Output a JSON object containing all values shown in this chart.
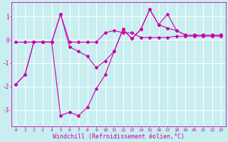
{
  "bg_color": "#c8eef0",
  "grid_color": "#ffffff",
  "line_color": "#cc00aa",
  "marker": "D",
  "markersize": 2.0,
  "linewidth": 0.8,
  "xlabel": "Windchill (Refroidissement éolien,°C)",
  "xlabel_fontsize": 6.0,
  "xtick_fontsize": 4.5,
  "ytick_fontsize": 5.5,
  "ylim": [
    -3.7,
    1.6
  ],
  "xlim": [
    -0.5,
    23.5
  ],
  "series1_x": [
    0,
    1,
    2,
    3,
    4,
    5,
    6,
    7,
    8,
    9,
    10,
    11,
    12,
    13,
    14,
    15,
    16,
    17,
    18,
    19,
    20,
    21,
    22,
    23
  ],
  "series1_y": [
    -0.1,
    -0.1,
    -0.1,
    -0.1,
    -0.1,
    1.1,
    -0.1,
    -0.1,
    -0.1,
    -0.1,
    0.3,
    0.4,
    0.3,
    0.3,
    0.1,
    0.1,
    0.1,
    0.1,
    0.15,
    0.15,
    0.15,
    0.15,
    0.15,
    0.15
  ],
  "series2_x": [
    0,
    1,
    2,
    3,
    4,
    5,
    6,
    7,
    8,
    9,
    10,
    11,
    12,
    13,
    14,
    15,
    16,
    17,
    18,
    19,
    20,
    21,
    22,
    23
  ],
  "series2_y": [
    -1.9,
    -1.5,
    -0.1,
    -0.1,
    -0.1,
    1.1,
    -0.3,
    -0.5,
    -0.7,
    -1.2,
    -0.9,
    -0.5,
    0.45,
    0.05,
    0.45,
    1.3,
    0.65,
    1.1,
    0.4,
    0.2,
    0.2,
    0.2,
    0.2,
    0.2
  ],
  "series3_x": [
    0,
    1,
    2,
    3,
    4,
    5,
    6,
    7,
    8,
    9,
    10,
    11,
    12,
    13,
    14,
    15,
    16,
    17,
    18,
    19,
    20,
    21,
    22,
    23
  ],
  "series3_y": [
    -1.9,
    -1.5,
    -0.1,
    -0.1,
    -0.1,
    -3.25,
    -3.1,
    -3.25,
    -2.9,
    -2.1,
    -1.5,
    -0.5,
    0.45,
    0.05,
    0.45,
    1.3,
    0.65,
    0.5,
    0.4,
    0.2,
    0.2,
    0.2,
    0.2,
    0.2
  ]
}
